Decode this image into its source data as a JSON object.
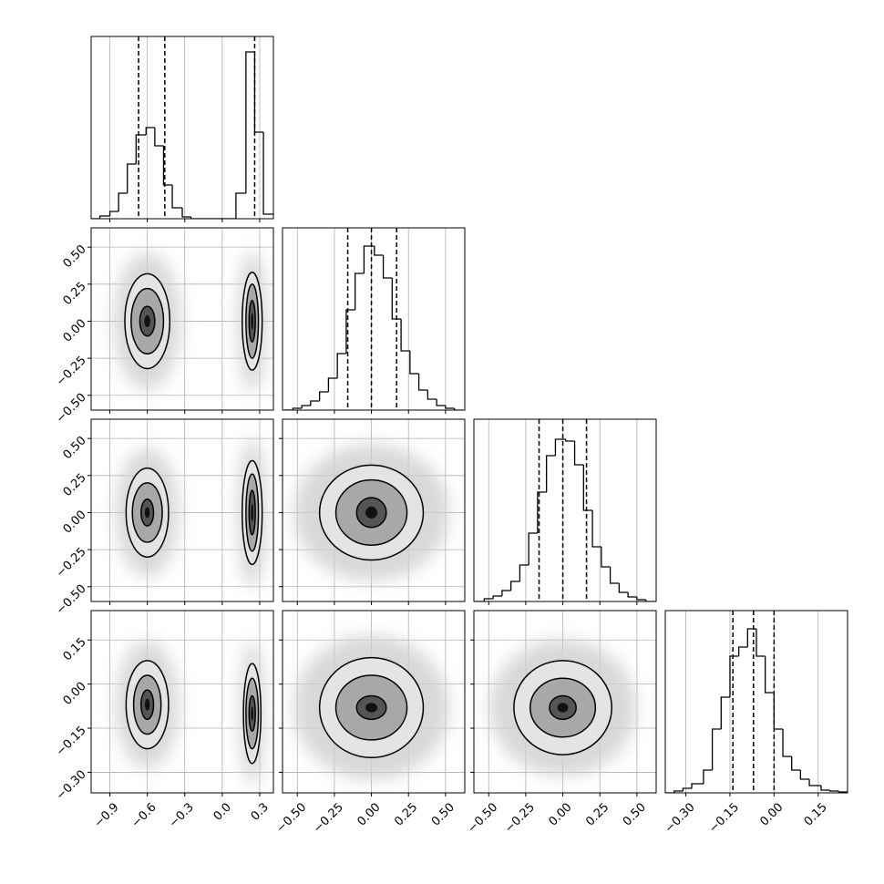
{
  "chart_data": {
    "type": "corner",
    "params": [
      {
        "range": [
          -1.05,
          0.41
        ],
        "ticks": [
          {
            "value": -0.9,
            "label": "−0.9"
          },
          {
            "value": -0.6,
            "label": "−0.6"
          },
          {
            "value": -0.3,
            "label": "−0.3"
          },
          {
            "value": 0.0,
            "label": "0.0"
          },
          0.3
        ]
      },
      {
        "range": [
          -0.6,
          0.63
        ],
        "ticks": [
          {
            "value": -0.5,
            "label": "−0.50"
          },
          {
            "value": -0.25,
            "label": "−0.25"
          },
          {
            "value": 0,
            "label": "0.00"
          },
          0.25,
          {
            "value": 0.5,
            "label": "0.50"
          }
        ]
      },
      {
        "range": [
          -0.6,
          0.63
        ],
        "ticks": [
          {
            "value": -0.5,
            "label": "−0.50"
          },
          {
            "value": -0.25,
            "label": "−0.25"
          },
          {
            "value": 0,
            "label": "0.00"
          },
          0.25,
          {
            "value": 0.5,
            "label": "0.50"
          }
        ]
      },
      {
        "range": [
          -0.37,
          0.25
        ],
        "ticks": [
          {
            "value": -0.3,
            "label": "−0.30"
          },
          {
            "value": -0.15,
            "label": "−0.15"
          },
          {
            "value": 0,
            "label": "0.00"
          },
          0.15
        ]
      }
    ],
    "histograms": [
      {
        "ylim": [
          0,
          200
        ],
        "bins": [
          -1.05,
          -0.98,
          -0.9,
          -0.83,
          -0.76,
          -0.69,
          -0.61,
          -0.54,
          -0.47,
          -0.4,
          -0.32,
          -0.25,
          -0.18,
          -0.1,
          -0.03,
          0.04,
          0.11,
          0.19,
          0.26,
          0.33,
          0.41
        ],
        "counts": [
          0,
          3,
          8,
          28,
          60,
          92,
          100,
          80,
          37,
          12,
          2,
          0,
          0,
          0,
          0,
          0,
          28,
          183,
          95,
          5
        ],
        "quantiles": [
          -0.67,
          -0.46,
          0.26
        ]
      },
      {
        "ylim": [
          0,
          200
        ],
        "bins": [
          -0.59,
          -0.53,
          -0.47,
          -0.41,
          -0.35,
          -0.29,
          -0.23,
          -0.17,
          -0.11,
          -0.05,
          0.02,
          0.08,
          0.14,
          0.2,
          0.26,
          0.32,
          0.38,
          0.44,
          0.5,
          0.56,
          0.62
        ],
        "counts": [
          0,
          2,
          5,
          10,
          20,
          35,
          62,
          110,
          150,
          180,
          170,
          145,
          100,
          65,
          40,
          22,
          12,
          5,
          2,
          0
        ],
        "quantiles": [
          -0.16,
          0.0,
          0.17
        ]
      },
      {
        "ylim": [
          0,
          200
        ],
        "bins": [
          -0.59,
          -0.53,
          -0.47,
          -0.41,
          -0.35,
          -0.29,
          -0.23,
          -0.17,
          -0.11,
          -0.05,
          0.02,
          0.08,
          0.14,
          0.2,
          0.26,
          0.32,
          0.38,
          0.44,
          0.5,
          0.56,
          0.62
        ],
        "counts": [
          0,
          3,
          6,
          12,
          22,
          40,
          75,
          120,
          160,
          178,
          176,
          150,
          100,
          60,
          38,
          20,
          10,
          5,
          2,
          0
        ],
        "quantiles": [
          -0.16,
          0.0,
          0.16
        ]
      },
      {
        "ylim": [
          0,
          200
        ],
        "bins": [
          -0.37,
          -0.34,
          -0.31,
          -0.28,
          -0.24,
          -0.21,
          -0.18,
          -0.15,
          -0.12,
          -0.09,
          -0.06,
          -0.03,
          0.0,
          0.03,
          0.06,
          0.09,
          0.12,
          0.16,
          0.19,
          0.22,
          0.25
        ],
        "counts": [
          0,
          2,
          5,
          10,
          25,
          70,
          105,
          150,
          160,
          180,
          150,
          110,
          70,
          40,
          25,
          15,
          8,
          3,
          2,
          1
        ],
        "quantiles": [
          -0.14,
          -0.07,
          0.0
        ]
      }
    ],
    "pairs": [
      {
        "contours": [
          {
            "center": [
              -0.6,
              0.0
            ],
            "radii": [
              [
                0.18,
                0.32
              ],
              [
                0.13,
                0.22
              ],
              [
                0.06,
                0.1
              ]
            ]
          },
          {
            "center": [
              0.24,
              0.0
            ],
            "radii": [
              [
                0.08,
                0.33
              ],
              [
                0.05,
                0.25
              ],
              [
                0.025,
                0.14
              ]
            ]
          }
        ]
      },
      {
        "contours": [
          {
            "center": [
              -0.6,
              0.0
            ],
            "radii": [
              [
                0.17,
                0.3
              ],
              [
                0.12,
                0.2
              ],
              [
                0.05,
                0.09
              ]
            ]
          },
          {
            "center": [
              0.24,
              0.0
            ],
            "radii": [
              [
                0.08,
                0.35
              ],
              [
                0.05,
                0.26
              ],
              [
                0.025,
                0.15
              ]
            ]
          }
        ]
      },
      {
        "contours": [
          {
            "center": [
              0.0,
              0.0
            ],
            "radii": [
              [
                0.35,
                0.32
              ],
              [
                0.24,
                0.22
              ],
              [
                0.1,
                0.1
              ]
            ]
          }
        ]
      },
      {
        "contours": [
          {
            "center": [
              -0.6,
              -0.07
            ],
            "radii": [
              [
                0.17,
                0.15
              ],
              [
                0.11,
                0.1
              ],
              [
                0.05,
                0.05
              ]
            ]
          },
          {
            "center": [
              0.24,
              -0.1
            ],
            "radii": [
              [
                0.07,
                0.17
              ],
              [
                0.05,
                0.12
              ],
              [
                0.025,
                0.06
              ]
            ]
          }
        ]
      },
      {
        "contours": [
          {
            "center": [
              0.0,
              -0.08
            ],
            "radii": [
              [
                0.35,
                0.17
              ],
              [
                0.24,
                0.11
              ],
              [
                0.1,
                0.04
              ]
            ]
          }
        ]
      },
      {
        "contours": [
          {
            "center": [
              0.0,
              -0.08
            ],
            "radii": [
              [
                0.33,
                0.16
              ],
              [
                0.22,
                0.1
              ],
              [
                0.09,
                0.04
              ]
            ]
          }
        ]
      }
    ]
  }
}
